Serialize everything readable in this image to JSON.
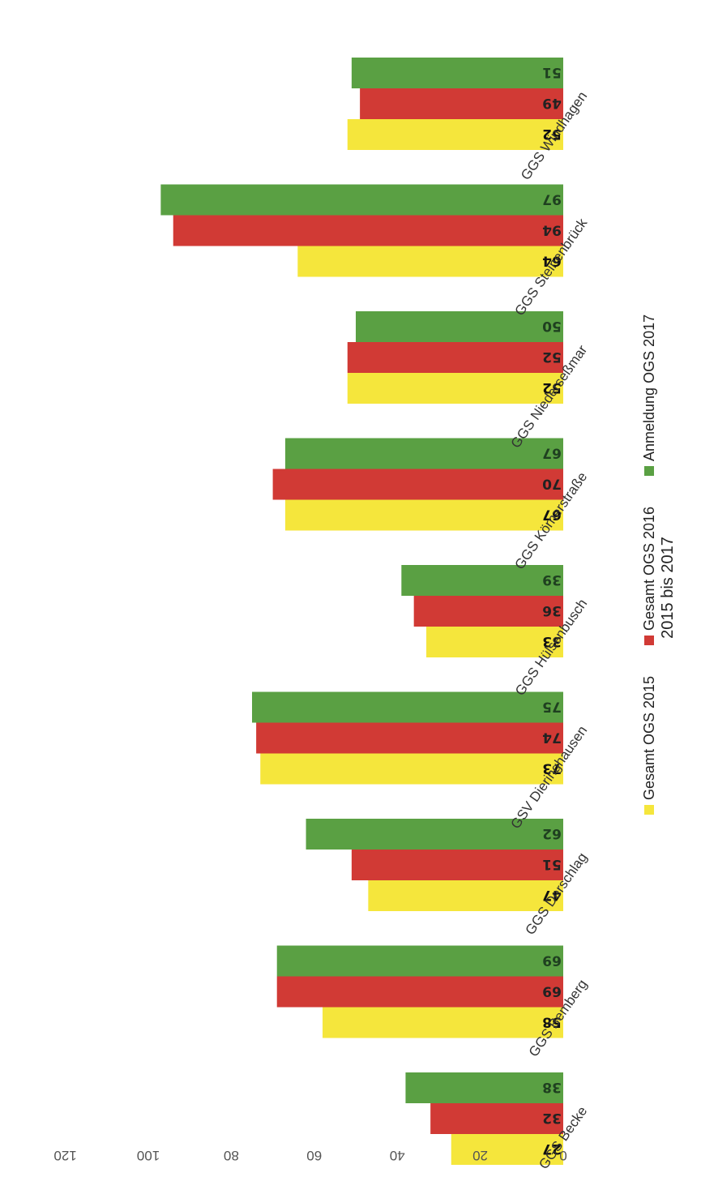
{
  "chart_data": {
    "type": "bar",
    "orientation": "horizontal",
    "title": "2015 bis 2017",
    "categories": [
      "GGS Becke",
      "GGS Bemberg",
      "GGS Derschlag",
      "GSV Dieringhausen",
      "GGS Hülsenbusch",
      "GGS Körnerstraße",
      "GGS Niederseßmar",
      "GGS Steinenbrück",
      "GGS Windhagen"
    ],
    "series": [
      {
        "name": "Gesamt OGS 2015",
        "color": "#f5e63c",
        "label_color": "#111111",
        "values": [
          27,
          58,
          47,
          73,
          33,
          67,
          52,
          64,
          52
        ]
      },
      {
        "name": "Gesamt OGS 2016",
        "color": "#d13a35",
        "label_color": "#222222",
        "values": [
          32,
          69,
          51,
          74,
          36,
          70,
          52,
          94,
          49
        ]
      },
      {
        "name": "Anmeldung OGS 2017",
        "color": "#5aa043",
        "label_color": "#1f4020",
        "values": [
          38,
          69,
          62,
          75,
          39,
          67,
          50,
          97,
          51
        ]
      }
    ],
    "xlim": [
      0,
      120
    ],
    "ticks": [
      0,
      20,
      40,
      60,
      80,
      100,
      120
    ],
    "grid": false,
    "legend": "top",
    "data_labels": true
  }
}
